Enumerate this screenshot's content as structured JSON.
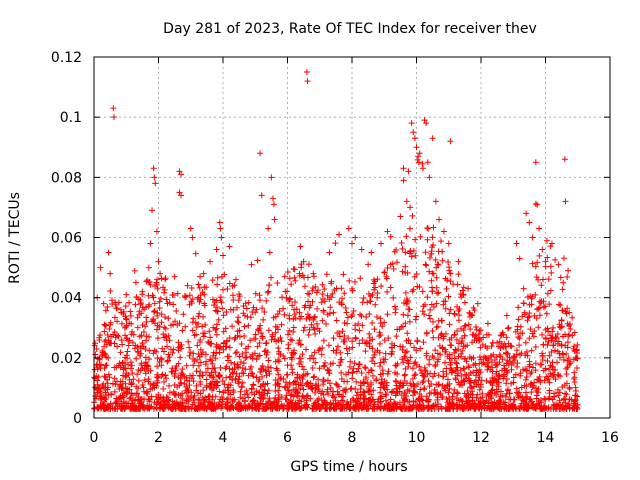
{
  "chart_data": {
    "type": "scatter",
    "title": "Day 281 of 2023, Rate Of TEC Index for receiver thev",
    "xlabel": "GPS time / hours",
    "ylabel": "ROTI / TECUs",
    "xlim": [
      0,
      16
    ],
    "ylim": [
      0,
      0.12
    ],
    "x_ticks": [
      0,
      2,
      4,
      6,
      8,
      10,
      12,
      14,
      16
    ],
    "x_tick_labels": [
      "0",
      "2",
      "4",
      "6",
      "8",
      "10",
      "12",
      "14",
      "16"
    ],
    "y_ticks": [
      0,
      0.02,
      0.04,
      0.06,
      0.08,
      0.1,
      0.12
    ],
    "y_tick_labels": [
      "0",
      "0.02",
      "0.04",
      "0.06",
      "0.08",
      "0.1",
      "0.12"
    ],
    "grid": true,
    "marker": "+",
    "color": "#ff0000",
    "series": [
      {
        "name": "ROTI",
        "points": [
          [
            0.6,
            0.103
          ],
          [
            0.62,
            0.1
          ],
          [
            0.1,
            0.04
          ],
          [
            0.2,
            0.05
          ],
          [
            0.3,
            0.038
          ],
          [
            0.45,
            0.055
          ],
          [
            0.5,
            0.048
          ],
          [
            1.0,
            0.041
          ],
          [
            1.3,
            0.045
          ],
          [
            1.5,
            0.042
          ],
          [
            1.85,
            0.083
          ],
          [
            1.87,
            0.08
          ],
          [
            1.9,
            0.078
          ],
          [
            1.8,
            0.069
          ],
          [
            1.95,
            0.062
          ],
          [
            1.75,
            0.058
          ],
          [
            2.0,
            0.052
          ],
          [
            2.05,
            0.048
          ],
          [
            1.7,
            0.05
          ],
          [
            2.65,
            0.082
          ],
          [
            2.7,
            0.081
          ],
          [
            2.65,
            0.075
          ],
          [
            2.7,
            0.074
          ],
          [
            2.5,
            0.047
          ],
          [
            2.9,
            0.044
          ],
          [
            3.0,
            0.063
          ],
          [
            3.05,
            0.06
          ],
          [
            3.4,
            0.048
          ],
          [
            3.6,
            0.052
          ],
          [
            3.8,
            0.056
          ],
          [
            3.9,
            0.065
          ],
          [
            3.92,
            0.063
          ],
          [
            3.95,
            0.06
          ],
          [
            4.0,
            0.054
          ],
          [
            4.2,
            0.057
          ],
          [
            4.4,
            0.046
          ],
          [
            5.15,
            0.088
          ],
          [
            5.2,
            0.074
          ],
          [
            5.5,
            0.08
          ],
          [
            5.55,
            0.073
          ],
          [
            5.58,
            0.071
          ],
          [
            5.6,
            0.066
          ],
          [
            5.4,
            0.063
          ],
          [
            5.45,
            0.055
          ],
          [
            6.6,
            0.115
          ],
          [
            6.62,
            0.112
          ],
          [
            6.4,
            0.057
          ],
          [
            6.5,
            0.052
          ],
          [
            6.8,
            0.048
          ],
          [
            7.3,
            0.055
          ],
          [
            7.6,
            0.061
          ],
          [
            7.9,
            0.063
          ],
          [
            8.0,
            0.058
          ],
          [
            8.1,
            0.06
          ],
          [
            8.3,
            0.056
          ],
          [
            8.5,
            0.051
          ],
          [
            8.6,
            0.055
          ],
          [
            8.9,
            0.058
          ],
          [
            9.1,
            0.062
          ],
          [
            9.2,
            0.051
          ],
          [
            9.5,
            0.067
          ],
          [
            9.6,
            0.079
          ],
          [
            9.7,
            0.072
          ],
          [
            9.75,
            0.082
          ],
          [
            9.8,
            0.07
          ],
          [
            9.85,
            0.098
          ],
          [
            9.9,
            0.095
          ],
          [
            9.95,
            0.093
          ],
          [
            10.0,
            0.09
          ],
          [
            10.05,
            0.087
          ],
          [
            10.1,
            0.088
          ],
          [
            10.2,
            0.083
          ],
          [
            10.25,
            0.099
          ],
          [
            10.3,
            0.098
          ],
          [
            10.35,
            0.085
          ],
          [
            10.4,
            0.08
          ],
          [
            10.5,
            0.093
          ],
          [
            10.6,
            0.072
          ],
          [
            10.7,
            0.066
          ],
          [
            10.85,
            0.062
          ],
          [
            11.0,
            0.058
          ],
          [
            11.05,
            0.092
          ],
          [
            11.3,
            0.052
          ],
          [
            11.6,
            0.043
          ],
          [
            11.9,
            0.038
          ],
          [
            13.1,
            0.058
          ],
          [
            13.2,
            0.053
          ],
          [
            13.4,
            0.068
          ],
          [
            13.5,
            0.065
          ],
          [
            13.6,
            0.06
          ],
          [
            13.7,
            0.085
          ],
          [
            13.8,
            0.063
          ],
          [
            13.9,
            0.056
          ],
          [
            14.0,
            0.052
          ],
          [
            14.2,
            0.058
          ],
          [
            14.4,
            0.051
          ],
          [
            14.6,
            0.086
          ],
          [
            14.62,
            0.072
          ],
          [
            14.7,
            0.049
          ]
        ]
      }
    ],
    "density_profile": [
      [
        0.0,
        0.012
      ],
      [
        0.5,
        0.02
      ],
      [
        1.0,
        0.018
      ],
      [
        1.5,
        0.022
      ],
      [
        2.0,
        0.026
      ],
      [
        2.5,
        0.02
      ],
      [
        3.0,
        0.022
      ],
      [
        3.5,
        0.022
      ],
      [
        4.0,
        0.024
      ],
      [
        4.5,
        0.022
      ],
      [
        5.0,
        0.02
      ],
      [
        5.5,
        0.024
      ],
      [
        6.0,
        0.024
      ],
      [
        6.5,
        0.026
      ],
      [
        7.0,
        0.024
      ],
      [
        7.5,
        0.024
      ],
      [
        8.0,
        0.024
      ],
      [
        8.5,
        0.022
      ],
      [
        9.0,
        0.024
      ],
      [
        9.5,
        0.032
      ],
      [
        10.0,
        0.036
      ],
      [
        10.5,
        0.032
      ],
      [
        11.0,
        0.028
      ],
      [
        11.5,
        0.022
      ],
      [
        12.0,
        0.014
      ],
      [
        12.5,
        0.012
      ],
      [
        13.0,
        0.016
      ],
      [
        13.5,
        0.026
      ],
      [
        14.0,
        0.03
      ],
      [
        14.5,
        0.024
      ],
      [
        15.0,
        0.012
      ]
    ],
    "data_x_range": [
      0,
      15
    ]
  }
}
